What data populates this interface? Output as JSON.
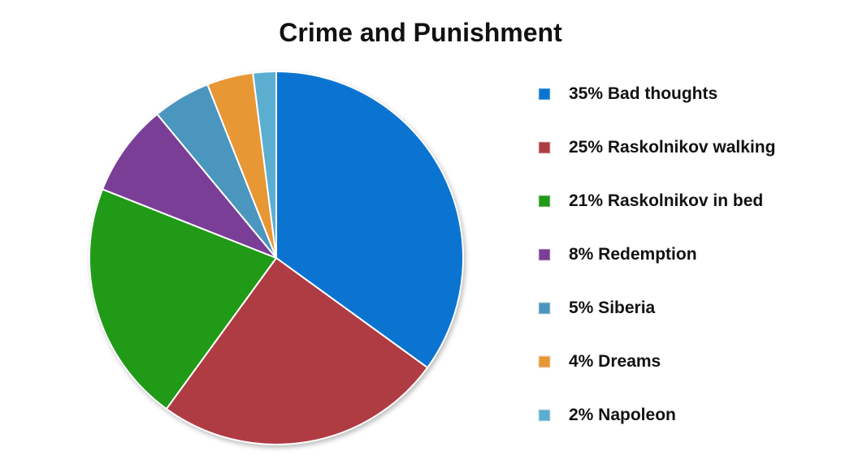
{
  "title": "Crime and Punishment",
  "chart_data": {
    "type": "pie",
    "title": "Crime and Punishment",
    "start_angle_deg": -90,
    "direction": "clockwise",
    "legend_position": "right",
    "background_color": "#FFFFFF",
    "slice_border_color": "#FFFFFF",
    "slices": [
      {
        "label": "Bad thoughts",
        "percent": 35,
        "color": "#0B74D1",
        "legend_label": "35% Bad thoughts"
      },
      {
        "label": "Raskolnikov walking",
        "percent": 25,
        "color": "#AF3B43",
        "legend_label": "25% Raskolnikov walking"
      },
      {
        "label": "Raskolnikov in bed",
        "percent": 21,
        "color": "#219A18",
        "legend_label": "21% Raskolnikov in bed"
      },
      {
        "label": "Redemption",
        "percent": 8,
        "color": "#7A3E97",
        "legend_label": "8% Redemption"
      },
      {
        "label": "Siberia",
        "percent": 5,
        "color": "#4A96BF",
        "legend_label": "5% Siberia"
      },
      {
        "label": "Dreams",
        "percent": 4,
        "color": "#E89735",
        "legend_label": "4% Dreams"
      },
      {
        "label": "Napoleon",
        "percent": 2,
        "color": "#5CAED0",
        "legend_label": "2% Napoleon"
      }
    ]
  }
}
